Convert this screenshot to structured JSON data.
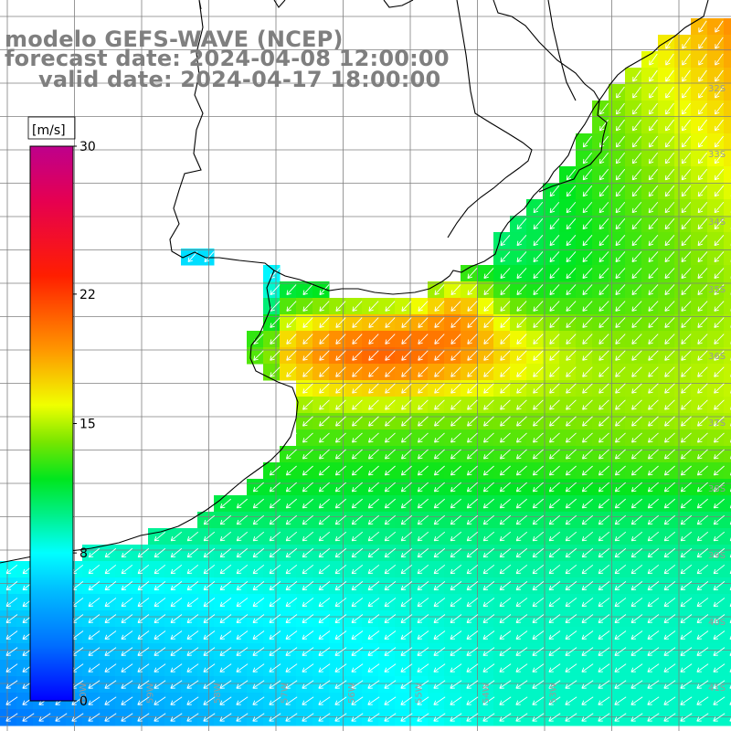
{
  "title": {
    "model": "modelo GEFS-WAVE (NCEP)",
    "forecast": "forecast date: 2024-04-08 12:00:00",
    "valid": "valid date: 2024-04-17 18:00:00"
  },
  "colorbar": {
    "unit": "[m/s]",
    "min": 0,
    "max": 30,
    "ticks": [
      "30",
      "22",
      "15",
      "8",
      "0"
    ],
    "tick_values": [
      30,
      22,
      15,
      8,
      0
    ]
  },
  "grid_labels": {
    "lat": [
      "37S",
      "38S",
      "39S",
      "40S",
      "41S"
    ],
    "lat_values": [
      37,
      38,
      39,
      40,
      41
    ],
    "partial_right": [
      "32S",
      "33S",
      "34S",
      "35S",
      "36S"
    ],
    "lon": [
      "60W",
      "59W",
      "58W",
      "57W",
      "56W",
      "55W",
      "54W",
      "53W"
    ]
  },
  "colors": {
    "background": "#ffffff",
    "title": "#7f7f7f",
    "grid": "#7f7f7f",
    "coast": "#000000",
    "arrow": "#ffffff"
  }
}
